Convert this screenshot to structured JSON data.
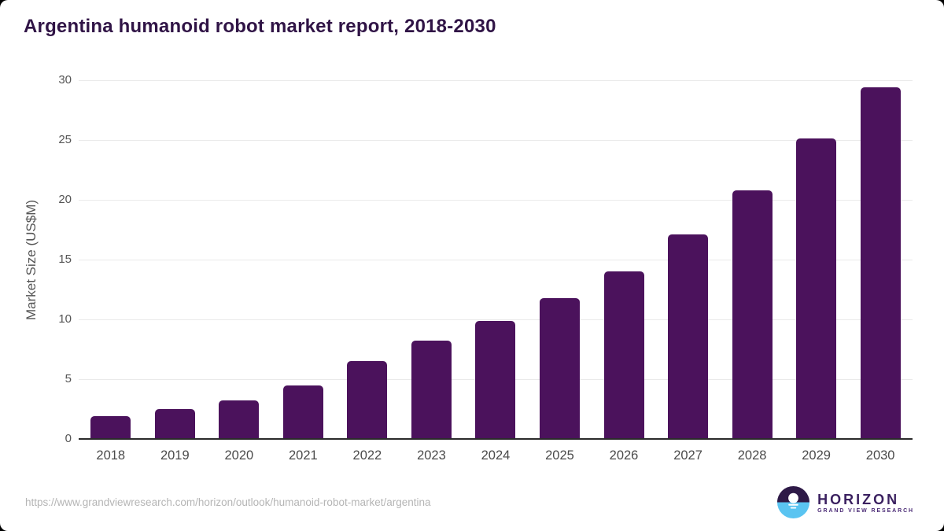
{
  "header": {
    "title": "Argentina humanoid robot market report, 2018-2030"
  },
  "chart_data": {
    "type": "bar",
    "title": "Argentina humanoid robot market report, 2018-2030",
    "categories": [
      "2018",
      "2019",
      "2020",
      "2021",
      "2022",
      "2023",
      "2024",
      "2025",
      "2026",
      "2027",
      "2028",
      "2029",
      "2030"
    ],
    "values": [
      1.9,
      2.5,
      3.2,
      4.5,
      6.5,
      8.2,
      9.9,
      11.8,
      14.0,
      17.1,
      20.8,
      25.1,
      29.4
    ],
    "xlabel": "",
    "ylabel": "Market Size (US$M)",
    "ylim": [
      0,
      30
    ],
    "yticks": [
      0,
      5,
      10,
      15,
      20,
      25,
      30
    ],
    "grid": true,
    "legend_position": "none",
    "bar_color": "#4b125c",
    "gridline_color": "#eaeaea",
    "axis_line_color": "#2b2b2b",
    "tick_label_color": "#555555",
    "title_color": "#301446"
  },
  "footer": {
    "source_url": "https://www.grandviewresearch.com/horizon/outlook/humanoid-robot-market/argentina",
    "logo": {
      "name": "HORIZON",
      "subtitle": "GRAND VIEW RESEARCH",
      "mark_top_color": "#2e1a47",
      "mark_bottom_color": "#5ac4f1",
      "sun_color": "#ffffff"
    }
  }
}
